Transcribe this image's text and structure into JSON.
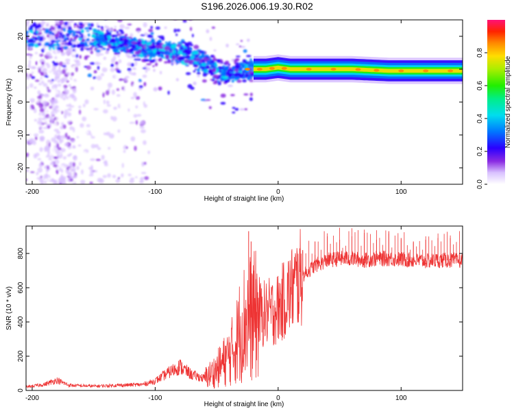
{
  "title": "S196.2026.006.19.30.R02",
  "chart_data": [
    {
      "type": "heatmap",
      "name": "spectrogram",
      "xlabel": "Height of straight line (km)",
      "ylabel": "Frequency (Hz)",
      "xlim": [
        -205,
        150
      ],
      "ylim": [
        -25,
        25
      ],
      "xticks": [
        -200,
        -100,
        0,
        100
      ],
      "yticks": [
        -20,
        -10,
        0,
        10,
        20
      ],
      "ridge": {
        "description": "dominant frequency track",
        "x": [
          -200,
          -180,
          -160,
          -140,
          -120,
          -100,
          -80,
          -60,
          -45,
          -35,
          -25,
          -10,
          0,
          10,
          30,
          60,
          90,
          120,
          150
        ],
        "y": [
          20,
          19,
          20,
          19,
          17,
          16,
          15,
          12,
          8,
          9,
          10,
          10,
          10.5,
          10,
          10,
          10,
          9.5,
          9.5,
          9.5
        ]
      },
      "colorbar": {
        "label": "Normalized spectral amplitude",
        "range": [
          0.0,
          1.0
        ],
        "ticks": [
          0.0,
          0.2,
          0.4,
          0.6,
          0.8
        ]
      }
    },
    {
      "type": "line",
      "name": "snr",
      "xlabel": "Height of straight line (km)",
      "ylabel": "SNR (10 * v/v)",
      "xlim": [
        -205,
        150
      ],
      "ylim": [
        0,
        960
      ],
      "xticks": [
        -200,
        -100,
        0,
        100
      ],
      "yticks": [
        0,
        200,
        400,
        600,
        800
      ],
      "color": "#ee3333",
      "series": [
        {
          "name": "SNR",
          "x": [
            -205,
            -190,
            -180,
            -170,
            -150,
            -130,
            -110,
            -100,
            -90,
            -80,
            -70,
            -60,
            -50,
            -40,
            -35,
            -30,
            -25,
            -20,
            -15,
            -10,
            -5,
            0,
            10,
            20,
            30,
            40,
            50,
            60,
            70,
            80,
            90,
            100,
            110,
            120,
            130,
            140,
            150
          ],
          "values": [
            20,
            35,
            60,
            30,
            25,
            30,
            35,
            55,
            100,
            140,
            90,
            70,
            120,
            200,
            260,
            380,
            420,
            430,
            440,
            450,
            460,
            480,
            580,
            670,
            730,
            760,
            770,
            770,
            760,
            770,
            770,
            765,
            760,
            755,
            760,
            760,
            755
          ]
        }
      ],
      "spikes": {
        "x": [
          -24,
          -22,
          -20,
          -18,
          20,
          30,
          40,
          50,
          60,
          70,
          80,
          90,
          100,
          110,
          120,
          130,
          140
        ],
        "values": [
          930,
          870,
          700,
          650,
          820,
          870,
          900,
          880,
          900,
          920,
          880,
          930,
          890,
          870,
          880,
          890,
          890
        ]
      }
    }
  ]
}
